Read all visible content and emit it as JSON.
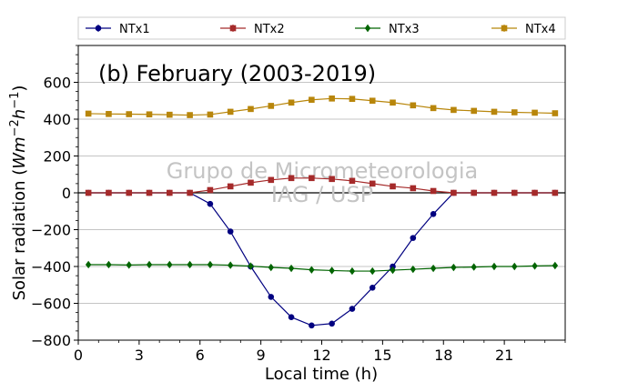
{
  "chart_data": {
    "type": "line",
    "title": "(b) February (2003-2019)",
    "xlabel": "Local time (h)",
    "ylabel": "Solar radiation ($Wm^{-2}h^{-1}$)",
    "ylabel_parts": {
      "pre": "Solar radiation (",
      "w": "Wm",
      "exp1": "−2",
      "h": "h",
      "exp2": "−1",
      "post": ")"
    },
    "xlim": [
      0,
      24
    ],
    "ylim": [
      -800,
      800
    ],
    "xticks": [
      0,
      3,
      6,
      9,
      12,
      15,
      18,
      21
    ],
    "yticks": [
      -800,
      -600,
      -400,
      -200,
      0,
      200,
      400,
      600
    ],
    "xtick_labels": [
      "0",
      "3",
      "6",
      "9",
      "12",
      "15",
      "18",
      "21"
    ],
    "ytick_labels": [
      "−800",
      "−600",
      "−400",
      "−200",
      "0",
      "200",
      "400",
      "600"
    ],
    "grid": "horizontal",
    "zero_line": true,
    "legend_position": "top (above plot)",
    "watermark": [
      "Grupo de Micrometeorologia",
      "IAG / USP"
    ],
    "x": [
      0.5,
      1.5,
      2.5,
      3.5,
      4.5,
      5.5,
      6.5,
      7.5,
      8.5,
      9.5,
      10.5,
      11.5,
      12.5,
      13.5,
      14.5,
      15.5,
      16.5,
      17.5,
      18.5,
      19.5,
      20.5,
      21.5,
      22.5,
      23.5
    ],
    "series": [
      {
        "name": "NTx1",
        "color": "#000080",
        "marker": "circle",
        "values": [
          0,
          0,
          0,
          0,
          0,
          0,
          -60,
          -210,
          -400,
          -565,
          -675,
          -720,
          -710,
          -630,
          -515,
          -400,
          -245,
          -115,
          0,
          0,
          0,
          0,
          0,
          0
        ]
      },
      {
        "name": "NTx2",
        "color": "#a52a2a",
        "marker": "square",
        "values": [
          0,
          0,
          0,
          0,
          0,
          0,
          15,
          35,
          55,
          70,
          80,
          80,
          75,
          65,
          50,
          35,
          25,
          10,
          0,
          0,
          0,
          0,
          0,
          0
        ]
      },
      {
        "name": "NTx3",
        "color": "#006400",
        "marker": "diamond",
        "values": [
          -390,
          -390,
          -392,
          -390,
          -390,
          -390,
          -390,
          -393,
          -398,
          -405,
          -410,
          -418,
          -422,
          -425,
          -425,
          -420,
          -415,
          -410,
          -405,
          -403,
          -400,
          -400,
          -397,
          -395
        ]
      },
      {
        "name": "NTx4",
        "color": "#b8860b",
        "marker": "square",
        "values": [
          430,
          428,
          427,
          426,
          424,
          422,
          425,
          440,
          455,
          472,
          490,
          505,
          512,
          510,
          500,
          490,
          475,
          460,
          450,
          445,
          440,
          437,
          435,
          432
        ]
      }
    ]
  }
}
